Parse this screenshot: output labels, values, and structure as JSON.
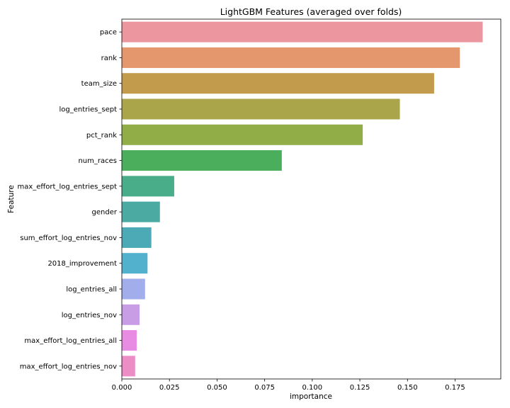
{
  "chart_data": {
    "type": "bar",
    "orientation": "horizontal",
    "title": "LightGBM Features (averaged over folds)",
    "xlabel": "importance",
    "ylabel": "Feature",
    "xlim": [
      0,
      0.199
    ],
    "xticks": [
      0.0,
      0.025,
      0.05,
      0.075,
      0.1,
      0.125,
      0.15,
      0.175
    ],
    "xtick_labels": [
      "0.000",
      "0.025",
      "0.050",
      "0.075",
      "0.100",
      "0.125",
      "0.150",
      "0.175"
    ],
    "grid": false,
    "categories": [
      "pace",
      "rank",
      "team_size",
      "log_entries_sept",
      "pct_rank",
      "num_races",
      "max_effort_log_entries_sept",
      "gender",
      "sum_effort_log_entries_nov",
      "2018_improvement",
      "log_entries_all",
      "log_entries_nov",
      "max_effort_log_entries_all",
      "max_effort_log_entries_nov"
    ],
    "values": [
      0.1895,
      0.1775,
      0.164,
      0.146,
      0.1265,
      0.084,
      0.0275,
      0.02,
      0.0155,
      0.0135,
      0.0122,
      0.0093,
      0.0078,
      0.007
    ],
    "colors": [
      "#ec96a0",
      "#e4966c",
      "#c39b4c",
      "#aaa44a",
      "#91ad48",
      "#4aae5c",
      "#49ad8a",
      "#4baba2",
      "#4caab6",
      "#52b1cc",
      "#a2aeec",
      "#c89de6",
      "#e88be3",
      "#ec8dc6"
    ]
  }
}
